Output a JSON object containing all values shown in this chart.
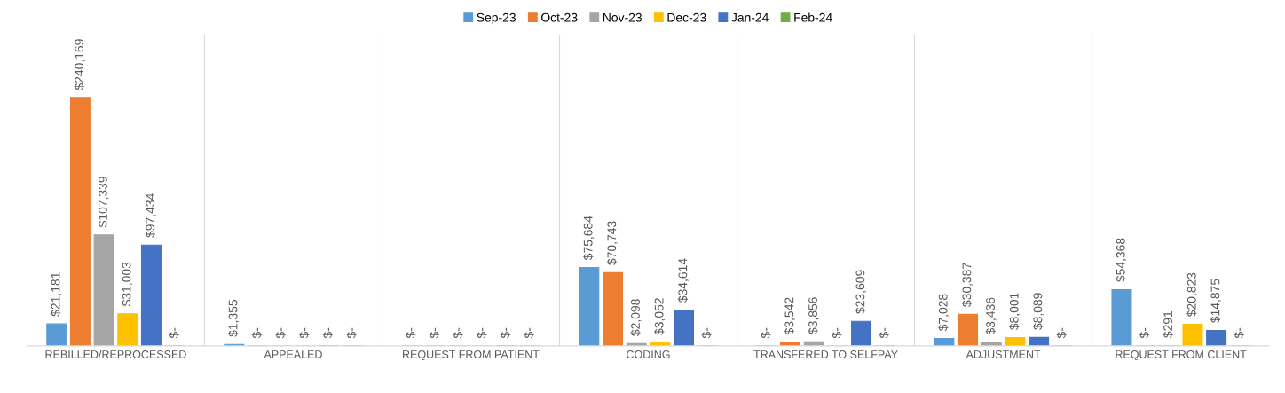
{
  "chart_data": {
    "type": "bar",
    "categories": [
      "REBILLED/REPROCESSED",
      "APPEALED",
      "REQUEST FROM PATIENT",
      "CODING",
      "TRANSFERED TO SELFPAY",
      "ADJUSTMENT",
      "REQUEST FROM CLIENT"
    ],
    "series": [
      {
        "name": "Sep-23",
        "color": "#5b9bd5",
        "values": [
          21181,
          1355,
          0,
          75684,
          0,
          7028,
          54368
        ],
        "value_labels": [
          "$21,181",
          "$1,355",
          "$-",
          "$75,684",
          "$-",
          "$7,028",
          "$54,368"
        ]
      },
      {
        "name": "Oct-23",
        "color": "#ed7d31",
        "values": [
          240169,
          0,
          0,
          70743,
          3542,
          30387,
          0
        ],
        "value_labels": [
          "$240,169",
          "$-",
          "$-",
          "$70,743",
          "$3,542",
          "$30,387",
          "$-"
        ]
      },
      {
        "name": "Nov-23",
        "color": "#a5a5a5",
        "values": [
          107339,
          0,
          0,
          2098,
          3856,
          3436,
          291
        ],
        "value_labels": [
          "$107,339",
          "$-",
          "$-",
          "$2,098",
          "$3,856",
          "$3,436",
          "$291"
        ]
      },
      {
        "name": "Dec-23",
        "color": "#ffc000",
        "values": [
          31003,
          0,
          0,
          3052,
          0,
          8001,
          20823
        ],
        "value_labels": [
          "$31,003",
          "$-",
          "$-",
          "$3,052",
          "$-",
          "$8,001",
          "$20,823"
        ]
      },
      {
        "name": "Jan-24",
        "color": "#4472c4",
        "values": [
          97434,
          0,
          0,
          34614,
          23609,
          8089,
          14875
        ],
        "value_labels": [
          "$97,434",
          "$-",
          "$-",
          "$34,614",
          "$23,609",
          "$8,089",
          "$14,875"
        ]
      },
      {
        "name": "Feb-24",
        "color": "#70ad47",
        "values": [
          0,
          0,
          0,
          0,
          0,
          0,
          0
        ],
        "value_labels": [
          "$-",
          "$-",
          "$-",
          "$-",
          "$-",
          "$-",
          "$-"
        ]
      }
    ],
    "tick_labels": "x",
    "grid": "x",
    "legend": "top"
  }
}
